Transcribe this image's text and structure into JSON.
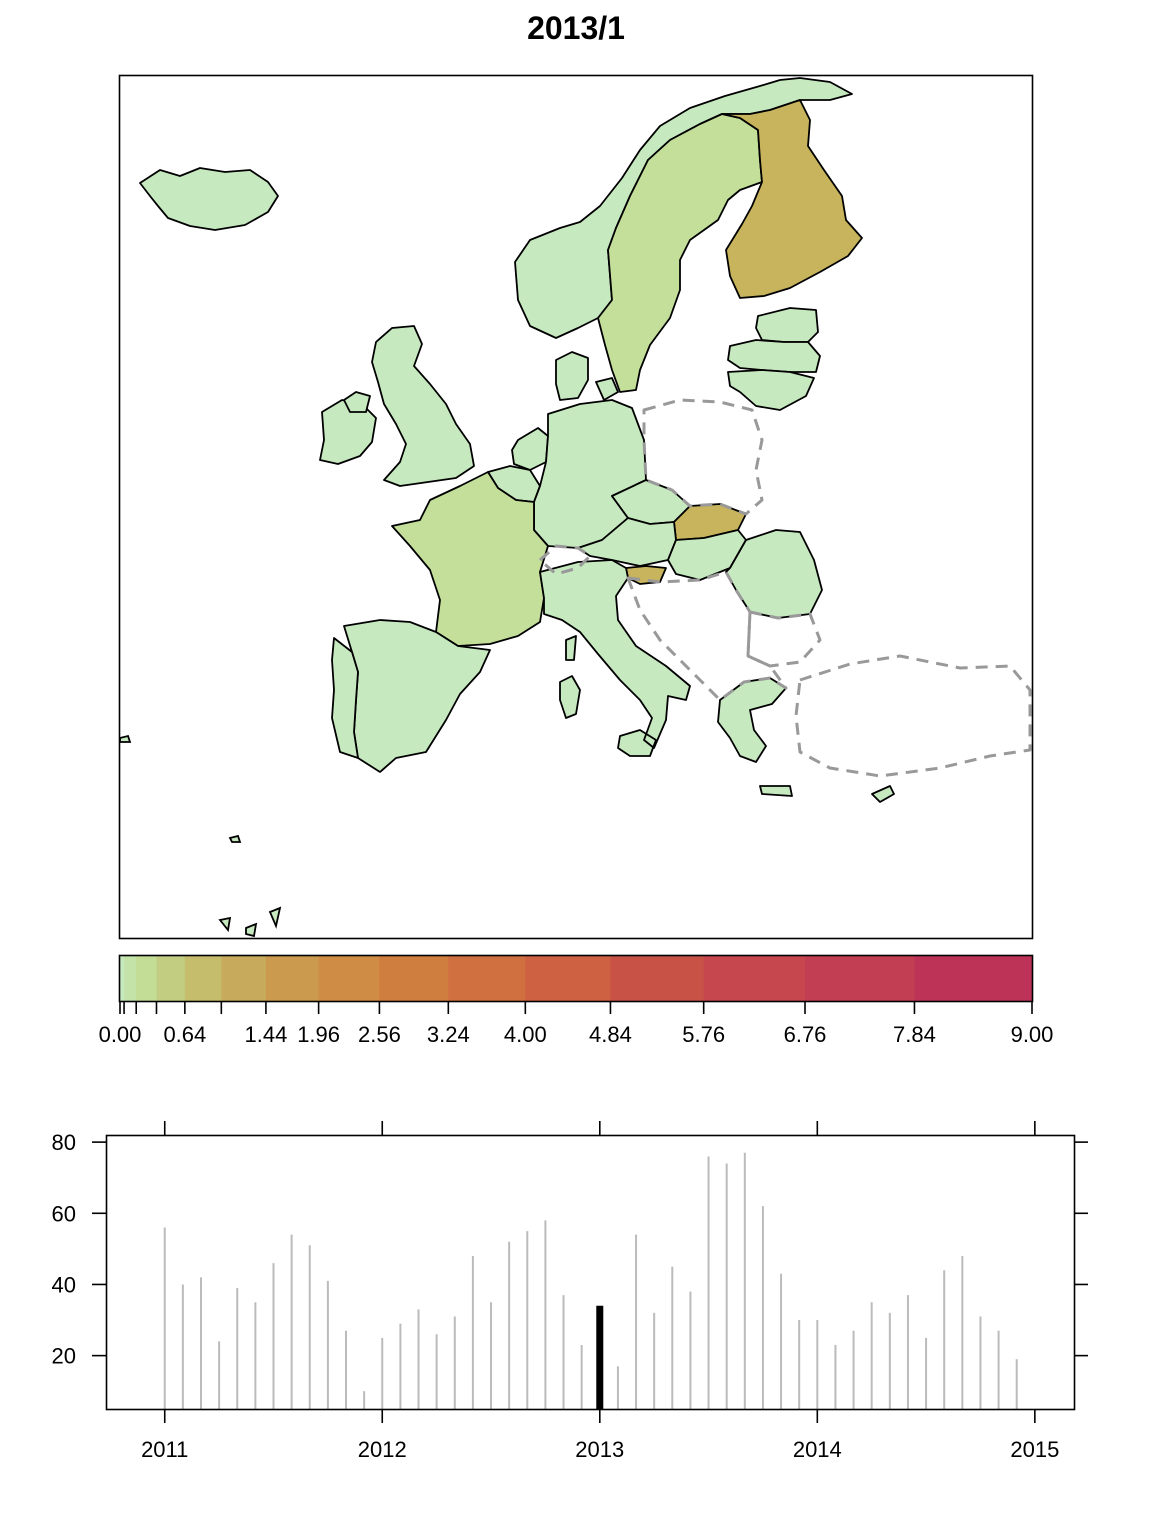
{
  "title": "2013/1",
  "colors": {
    "country_low": "#c7e9c0",
    "country_mid": "#c3df9a",
    "country_high": "#c7b45c",
    "border_missing": "#999999",
    "bar": "#bbbbbb",
    "bar_current": "#000000"
  },
  "map": {
    "countries": [
      {
        "name": "Iceland",
        "level": "low"
      },
      {
        "name": "Norway",
        "level": "low"
      },
      {
        "name": "Sweden",
        "level": "mid"
      },
      {
        "name": "Finland",
        "level": "high"
      },
      {
        "name": "Estonia",
        "level": "low"
      },
      {
        "name": "Latvia",
        "level": "low"
      },
      {
        "name": "Lithuania",
        "level": "low"
      },
      {
        "name": "Denmark",
        "level": "low"
      },
      {
        "name": "Ireland",
        "level": "low"
      },
      {
        "name": "United Kingdom",
        "level": "low"
      },
      {
        "name": "Netherlands",
        "level": "low"
      },
      {
        "name": "Belgium",
        "level": "low"
      },
      {
        "name": "Germany",
        "level": "low"
      },
      {
        "name": "Poland",
        "level": "missing"
      },
      {
        "name": "Czechia",
        "level": "low"
      },
      {
        "name": "Slovakia",
        "level": "high"
      },
      {
        "name": "Austria",
        "level": "low"
      },
      {
        "name": "Hungary",
        "level": "low"
      },
      {
        "name": "Slovenia",
        "level": "high"
      },
      {
        "name": "France",
        "level": "mid"
      },
      {
        "name": "Switzerland",
        "level": "missing"
      },
      {
        "name": "Italy",
        "level": "low"
      },
      {
        "name": "Spain",
        "level": "low"
      },
      {
        "name": "Portugal",
        "level": "low"
      },
      {
        "name": "Romania",
        "level": "low"
      },
      {
        "name": "Bulgaria",
        "level": "missing"
      },
      {
        "name": "Greece",
        "level": "low"
      },
      {
        "name": "Turkey",
        "level": "missing"
      },
      {
        "name": "Cyprus",
        "level": "low"
      }
    ]
  },
  "legend": {
    "breaks": [
      0,
      0.04,
      0.16,
      0.36,
      0.64,
      1.0,
      1.44,
      1.96,
      2.56,
      3.24,
      4.0,
      4.84,
      5.76,
      6.76,
      7.84,
      9.0
    ],
    "colors": [
      "#c7e9c0",
      "#c3e3a8",
      "#c3dc96",
      "#c3cd82",
      "#c5bd6c",
      "#c8aa5c",
      "#cb9a4e",
      "#cf8c45",
      "#d07d40",
      "#d06f3f",
      "#ce6142",
      "#c95247",
      "#c6484e",
      "#c23e52",
      "#bd3358"
    ],
    "tick_labels": [
      "0.00",
      "0.64",
      "1.44",
      "1.96",
      "2.56",
      "3.24",
      "4.00",
      "4.84",
      "5.76",
      "6.76",
      "7.84",
      "9.00"
    ]
  },
  "chart_data": {
    "type": "bar",
    "xlabel": "",
    "ylabel": "",
    "ylim": [
      5,
      82
    ],
    "xlim": [
      2010.73,
      2015.18
    ],
    "x_ticks": [
      2011,
      2012,
      2013,
      2014,
      2015
    ],
    "x_tick_labels": [
      "2011",
      "2012",
      "2013",
      "2014",
      "2015"
    ],
    "y_ticks": [
      20,
      40,
      60,
      80
    ],
    "y_tick_labels": [
      "20",
      "40",
      "60",
      "80"
    ],
    "grid": false,
    "highlight_index": 24,
    "series": [
      {
        "x": [
          "2011-01",
          "2011-02",
          "2011-03",
          "2011-04",
          "2011-05",
          "2011-06",
          "2011-07",
          "2011-08",
          "2011-09",
          "2011-10",
          "2011-11",
          "2011-12",
          "2012-01",
          "2012-02",
          "2012-03",
          "2012-04",
          "2012-05",
          "2012-06",
          "2012-07",
          "2012-08",
          "2012-09",
          "2012-10",
          "2012-11",
          "2012-12",
          "2013-01",
          "2013-02",
          "2013-03",
          "2013-04",
          "2013-05",
          "2013-06",
          "2013-07",
          "2013-08",
          "2013-09",
          "2013-10",
          "2013-11",
          "2013-12",
          "2014-01",
          "2014-02",
          "2014-03",
          "2014-04",
          "2014-05",
          "2014-06",
          "2014-07",
          "2014-08",
          "2014-09",
          "2014-10",
          "2014-11",
          "2014-12"
        ],
        "values": [
          56,
          40,
          42,
          24,
          39,
          35,
          46,
          54,
          51,
          41,
          27,
          10,
          25,
          29,
          33,
          26,
          31,
          48,
          35,
          52,
          55,
          58,
          37,
          23,
          34,
          17,
          54,
          32,
          45,
          38,
          76,
          74,
          77,
          62,
          43,
          30,
          30,
          23,
          27,
          35,
          32,
          37,
          25,
          44,
          48,
          31,
          27,
          19
        ]
      }
    ]
  }
}
